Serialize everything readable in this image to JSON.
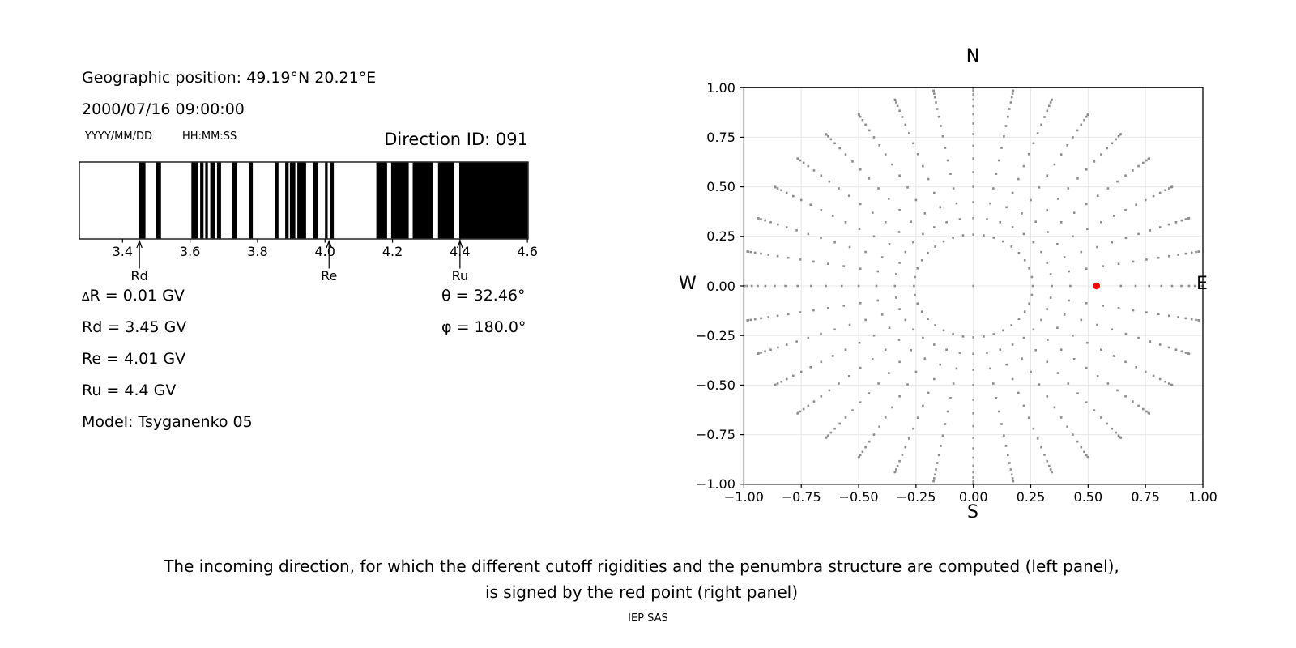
{
  "info_panel": {
    "geographic_position": "Geographic position: 49.19°N 20.21°E",
    "datetime": "2000/07/16 09:00:00",
    "date_format_label": "YYYY/MM/DD",
    "time_format_label": "HH:MM:SS",
    "direction_id": "Direction ID: 091",
    "parameters": {
      "delta_r": "∆R = 0.01 GV",
      "rd": "Rd = 3.45 GV",
      "re": "Re = 4.01 GV",
      "ru": "Ru = 4.4 GV",
      "model": "Model: Tsyganenko 05",
      "theta": "θ = 32.46°",
      "phi": "φ = 180.0°"
    }
  },
  "caption": {
    "line1": "The incoming direction, for which the different cutoff rigidities and the penumbra structure are computed (left panel),",
    "line2": "is signed by the red point (right panel)",
    "credit": "IEP SAS"
  },
  "chart_data": [
    {
      "type": "bar",
      "subtype": "penumbra-barcode",
      "xlabel_unit": "GV",
      "xlim": [
        3.272,
        4.602
      ],
      "x_ticks": [
        {
          "value": 3.4,
          "label": "3.4"
        },
        {
          "value": 3.6,
          "label": "3.6"
        },
        {
          "value": 3.8,
          "label": "3.8"
        },
        {
          "value": 4.0,
          "label": "4.0"
        },
        {
          "value": 4.2,
          "label": "4.2"
        },
        {
          "value": 4.4,
          "label": "4.4"
        },
        {
          "value": 4.6,
          "label": "4.6"
        }
      ],
      "black_intervals_gv": [
        [
          3.448,
          3.468
        ],
        [
          3.5,
          3.514
        ],
        [
          3.604,
          3.624
        ],
        [
          3.63,
          3.64
        ],
        [
          3.645,
          3.653
        ],
        [
          3.66,
          3.673
        ],
        [
          3.68,
          3.692
        ],
        [
          3.724,
          3.74
        ],
        [
          3.774,
          3.786
        ],
        [
          3.852,
          3.862
        ],
        [
          3.882,
          3.892
        ],
        [
          3.896,
          3.912
        ],
        [
          3.918,
          3.944
        ],
        [
          3.964,
          3.98
        ],
        [
          4.0,
          4.008
        ],
        [
          4.015,
          4.026
        ],
        [
          4.152,
          4.184
        ],
        [
          4.196,
          4.248
        ],
        [
          4.26,
          4.32
        ],
        [
          4.335,
          4.381
        ],
        [
          4.398,
          4.602
        ]
      ],
      "markers": [
        {
          "name": "Rd",
          "value_gv": 3.45
        },
        {
          "name": "Re",
          "value_gv": 4.012
        },
        {
          "name": "Ru",
          "value_gv": 4.4
        }
      ],
      "bar_color": "#000000"
    },
    {
      "type": "scatter",
      "subtype": "incoming-direction-grid",
      "compass": {
        "north": "N",
        "south": "S",
        "west": "W",
        "east": "E"
      },
      "xlim": [
        -1,
        1
      ],
      "ylim": [
        -1,
        1
      ],
      "grid": true,
      "x_ticks": [
        {
          "value": -1.0,
          "label": "−1.00"
        },
        {
          "value": -0.75,
          "label": "−0.75"
        },
        {
          "value": -0.5,
          "label": "−0.50"
        },
        {
          "value": -0.25,
          "label": "−0.25"
        },
        {
          "value": 0.0,
          "label": "0.00"
        },
        {
          "value": 0.25,
          "label": "0.25"
        },
        {
          "value": 0.5,
          "label": "0.50"
        },
        {
          "value": 0.75,
          "label": "0.75"
        },
        {
          "value": 1.0,
          "label": "1.00"
        }
      ],
      "y_ticks": [
        {
          "value": 1.0,
          "label": "1.00"
        },
        {
          "value": 0.75,
          "label": "0.75"
        },
        {
          "value": 0.5,
          "label": "0.50"
        },
        {
          "value": 0.25,
          "label": "0.25"
        },
        {
          "value": 0.0,
          "label": "0.00"
        },
        {
          "value": -0.25,
          "label": "−0.25"
        },
        {
          "value": -0.5,
          "label": "−0.50"
        },
        {
          "value": -0.75,
          "label": "−0.75"
        },
        {
          "value": -1.0,
          "label": "−1.00"
        }
      ],
      "direction_grid": {
        "azimuth_step_deg": 10,
        "zenith_min_deg": 15,
        "zenith_max_deg": 90,
        "zenith_step_deg": 5,
        "radius_equals": "sin(zenith)",
        "center_dot": true,
        "east_spoke_skipped_zenith_deg": [
          30,
          35
        ]
      },
      "red_point": {
        "x": 0.5367,
        "y": 0.0,
        "theta_deg": 32.46,
        "phi_deg": 180.0
      },
      "dot_color": "#8c8c8c",
      "red_color": "#ff0000",
      "grid_color": "#e8e8e8",
      "spine_color": "#000000"
    }
  ]
}
